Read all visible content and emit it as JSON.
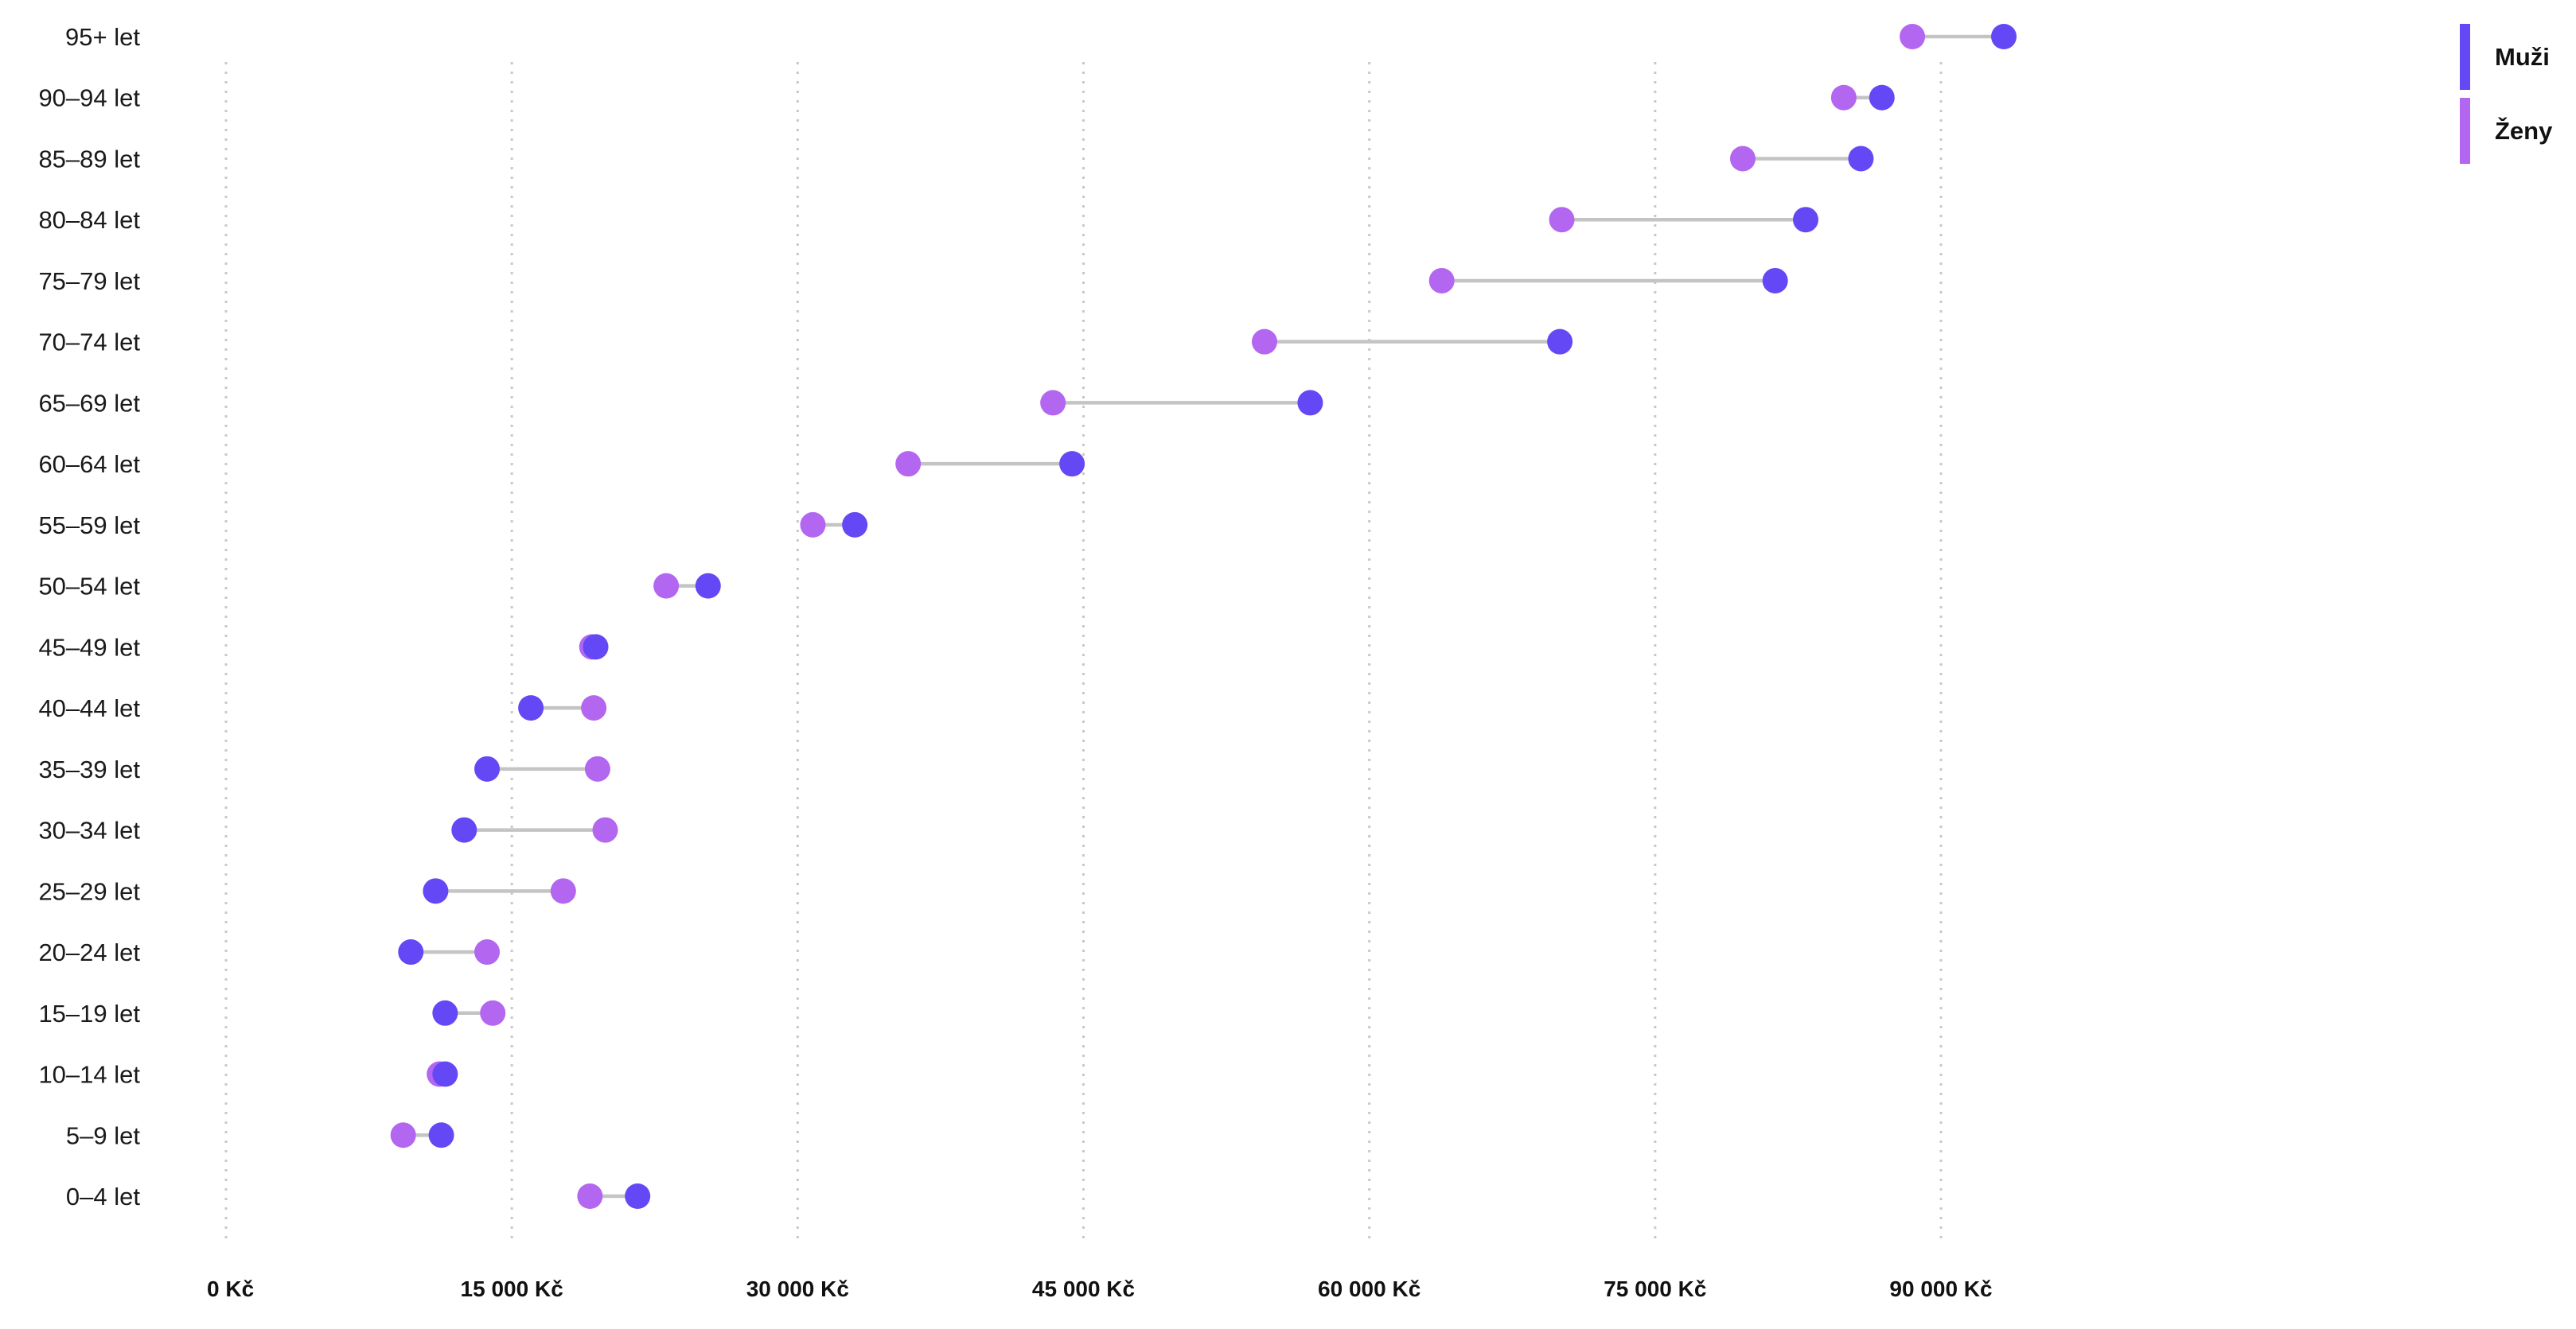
{
  "chart_data": {
    "type": "dumbbell",
    "categories": [
      "0–4 let",
      "5–9 let",
      "10–14 let",
      "15–19 let",
      "20–24 let",
      "25–29 let",
      "30–34 let",
      "35–39 let",
      "40–44 let",
      "45–49 let",
      "50–54 let",
      "55–59 let",
      "60–64 let",
      "65–69 let",
      "70–74 let",
      "75–79 let",
      "80–84 let",
      "85–89 let",
      "90–94 let",
      "95+ let"
    ],
    "series": [
      {
        "name": "Muži",
        "color": "#6448f5",
        "values": [
          21600,
          11300,
          11500,
          11500,
          9700,
          11000,
          12500,
          13700,
          16000,
          19400,
          25300,
          33000,
          44400,
          56900,
          70000,
          81300,
          82900,
          85800,
          86900,
          93300
        ]
      },
      {
        "name": "Ženy",
        "color": "#b366f0",
        "values": [
          19100,
          9300,
          11200,
          14000,
          13700,
          17700,
          19900,
          19500,
          19300,
          19200,
          23100,
          30800,
          35800,
          43400,
          54500,
          63800,
          70100,
          79600,
          84900,
          88500
        ]
      }
    ],
    "xlim": [
      0,
      90000
    ],
    "xticks": [
      0,
      15000,
      30000,
      45000,
      60000,
      75000,
      90000
    ],
    "xtick_labels": [
      "0 Kč",
      "15 000 Kč",
      "30 000 Kč",
      "45 000 Kč",
      "60 000 Kč",
      "75 000 Kč",
      "90 000 Kč"
    ],
    "title": "",
    "xlabel": "",
    "ylabel": "",
    "grid": "vertical-dotted",
    "legend": "top-right",
    "connector_color": "#c4c4c4"
  }
}
